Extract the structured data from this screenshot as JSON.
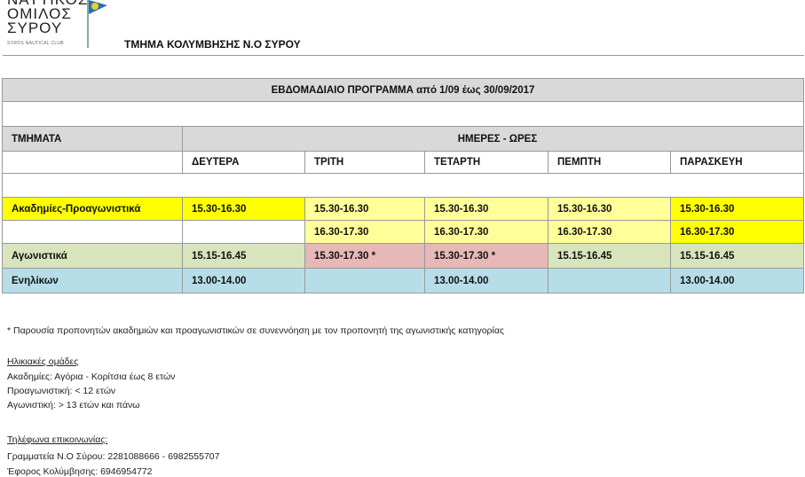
{
  "logo": {
    "line1": "ΝΑΥΤΙΚΟΣ",
    "line2": "ΟΜΙΛΟΣ",
    "line3": "ΣΥΡΟΥ",
    "sub": "SYROS NAUTICAL CLUB"
  },
  "department_title": "ΤΜΗΜΑ ΚΟΛΥΜΒΗΣΗΣ Ν.Ο ΣΥΡΟΥ",
  "schedule_title": "ΕΒΔΟΜΑΔΙΑΙΟ ΠΡΟΓΡΑΜΜΑ  από 1/09 έως 30/09/2017",
  "table": {
    "col_header": "ΤΜΗΜΑΤΑ",
    "days_header": "ΗΜΕΡΕΣ - ΩΡΕΣ",
    "days": [
      "ΔΕΥΤΕΡΑ",
      "ΤΡΙΤΗ",
      "ΤΕΤΑΡΤΗ",
      "ΠΕΜΠΤΗ",
      "ΠΑΡΑΣΚΕΥΗ"
    ],
    "rows": [
      {
        "label": "Ακαδημίες-Προαγωνιστικά",
        "cells": [
          "15.30-16.30",
          "15.30-16.30",
          "15.30-16.30",
          "15.30-16.30",
          "15.30-16.30"
        ]
      },
      {
        "label": "",
        "cells": [
          "",
          "16.30-17.30",
          "16.30-17.30",
          "16.30-17.30",
          "16.30-17.30"
        ]
      },
      {
        "label": "Αγωνιστικά",
        "cells": [
          "15.15-16.45",
          "15.30-17.30 *",
          "15.30-17.30 *",
          "15.15-16.45",
          "15.15-16.45"
        ]
      },
      {
        "label": "Ενηλίκων",
        "cells": [
          "13.00-14.00",
          "",
          "13.00-14.00",
          "",
          "13.00-14.00"
        ]
      }
    ]
  },
  "colors": {
    "yellow": "#ffff00",
    "light_yellow": "#ffff99",
    "green": "#d8e4bc",
    "pink": "#e6b8b7",
    "blue": "#b7dee8",
    "header_gray": "#d9d9d9"
  },
  "footnote": "* Παρουσία προπονητών ακαδημιών και προαγωνιστικών σε συνεννόηση με τον προπονητή της αγωνιστικής κατηγορίας",
  "age_groups": {
    "heading": "Ηλικιακές  ομάδες",
    "lines": [
      "Ακαδημίες: Αγόρια - Κορίτσια έως 8 ετών",
      "Προαγωνιστική:  < 12 ετών",
      "Αγωνιστική:  > 13 ετών και πάνω"
    ]
  },
  "contacts": {
    "heading": "Τηλέφωνα επικοινωνίας:",
    "lines": [
      "Γραμματεία Ν.Ο Σύρου:  2281088666 - 6982555707",
      "Έφορος Κολύμβησης: 6946954772"
    ]
  }
}
